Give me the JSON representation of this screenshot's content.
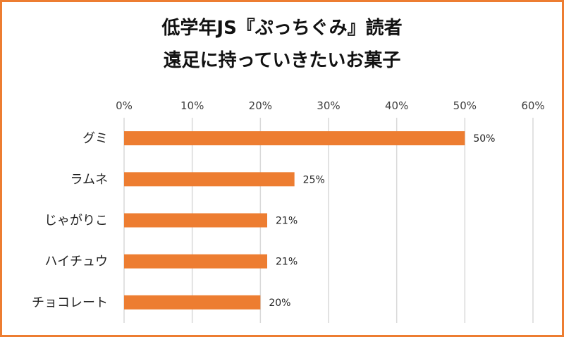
{
  "chart_data": {
    "type": "bar",
    "orientation": "horizontal",
    "title_lines": [
      "低学年JS『ぷっちぐみ』読者",
      "遠足に持っていきたいお菓子"
    ],
    "categories": [
      "グミ",
      "ラムネ",
      "じゃがりこ",
      "ハイチュウ",
      "チョコレート"
    ],
    "values": [
      50,
      25,
      21,
      21,
      20
    ],
    "data_labels": [
      "50%",
      "25%",
      "21%",
      "21%",
      "20%"
    ],
    "x_ticks": [
      "0%",
      "10%",
      "20%",
      "30%",
      "40%",
      "50%",
      "60%"
    ],
    "xlim": [
      0,
      60
    ],
    "x_axis_position": "top",
    "grid": true,
    "legend": "none",
    "colors": {
      "bar": "#ED7D31",
      "grid": "#D9D9D9",
      "border": "#ED7D31"
    }
  }
}
